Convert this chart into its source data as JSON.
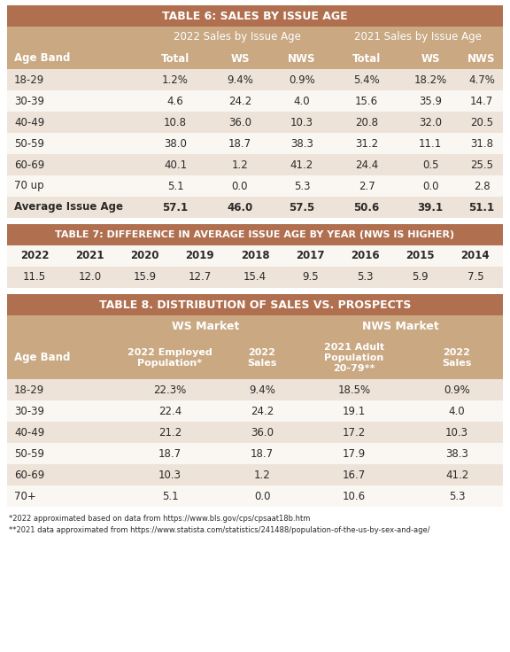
{
  "header_color": "#b07050",
  "subheader_color": "#c9a882",
  "alt_row_color": "#ede3d8",
  "white_row_color": "#faf6f2",
  "background_color": "#ffffff",
  "header_text_color": "#ffffff",
  "body_text_color": "#2a2a2a",
  "table6_title": "TABLE 6: SALES BY ISSUE AGE",
  "table6_col_group1": "2022 Sales by Issue Age",
  "table6_col_group2": "2021 Sales by Issue Age",
  "table6_headers": [
    "Age Band",
    "Total",
    "WS",
    "NWS",
    "Total",
    "WS",
    "NWS"
  ],
  "table6_rows": [
    [
      "18-29",
      "1.2%",
      "9.4%",
      "0.9%",
      "5.4%",
      "18.2%",
      "4.7%"
    ],
    [
      "30-39",
      "4.6",
      "24.2",
      "4.0",
      "15.6",
      "35.9",
      "14.7"
    ],
    [
      "40-49",
      "10.8",
      "36.0",
      "10.3",
      "20.8",
      "32.0",
      "20.5"
    ],
    [
      "50-59",
      "38.0",
      "18.7",
      "38.3",
      "31.2",
      "11.1",
      "31.8"
    ],
    [
      "60-69",
      "40.1",
      "1.2",
      "41.2",
      "24.4",
      "0.5",
      "25.5"
    ],
    [
      "70 up",
      "5.1",
      "0.0",
      "5.3",
      "2.7",
      "0.0",
      "2.8"
    ],
    [
      "Average Issue Age",
      "57.1",
      "46.0",
      "57.5",
      "50.6",
      "39.1",
      "51.1"
    ]
  ],
  "table7_title": "TABLE 7: DIFFERENCE IN AVERAGE ISSUE AGE BY YEAR (NWS IS HIGHER)",
  "table7_years": [
    "2022",
    "2021",
    "2020",
    "2019",
    "2018",
    "2017",
    "2016",
    "2015",
    "2014"
  ],
  "table7_values": [
    "11.5",
    "12.0",
    "15.9",
    "12.7",
    "15.4",
    "9.5",
    "5.3",
    "5.9",
    "7.5"
  ],
  "table8_title": "TABLE 8. DISTRIBUTION OF SALES VS. PROSPECTS",
  "table8_ws_header": "WS Market",
  "table8_nws_header": "NWS Market",
  "table8_col_headers": [
    "Age Band",
    "2022 Employed\nPopulation*",
    "2022\nSales",
    "2021 Adult\nPopulation\n20-79**",
    "2022\nSales"
  ],
  "table8_rows": [
    [
      "18-29",
      "22.3%",
      "9.4%",
      "18.5%",
      "0.9%"
    ],
    [
      "30-39",
      "22.4",
      "24.2",
      "19.1",
      "4.0"
    ],
    [
      "40-49",
      "21.2",
      "36.0",
      "17.2",
      "10.3"
    ],
    [
      "50-59",
      "18.7",
      "18.7",
      "17.9",
      "38.3"
    ],
    [
      "60-69",
      "10.3",
      "1.2",
      "16.7",
      "41.2"
    ],
    [
      "70+",
      "5.1",
      "0.0",
      "10.6",
      "5.3"
    ]
  ],
  "footnote1": "*2022 approximated based on data from https://www.bls.gov/cps/cpsaat18b.htm",
  "footnote2": "**2021 data approximated from https://www.statista.com/statistics/241488/population-of-the-us-by-sex-and-age/"
}
